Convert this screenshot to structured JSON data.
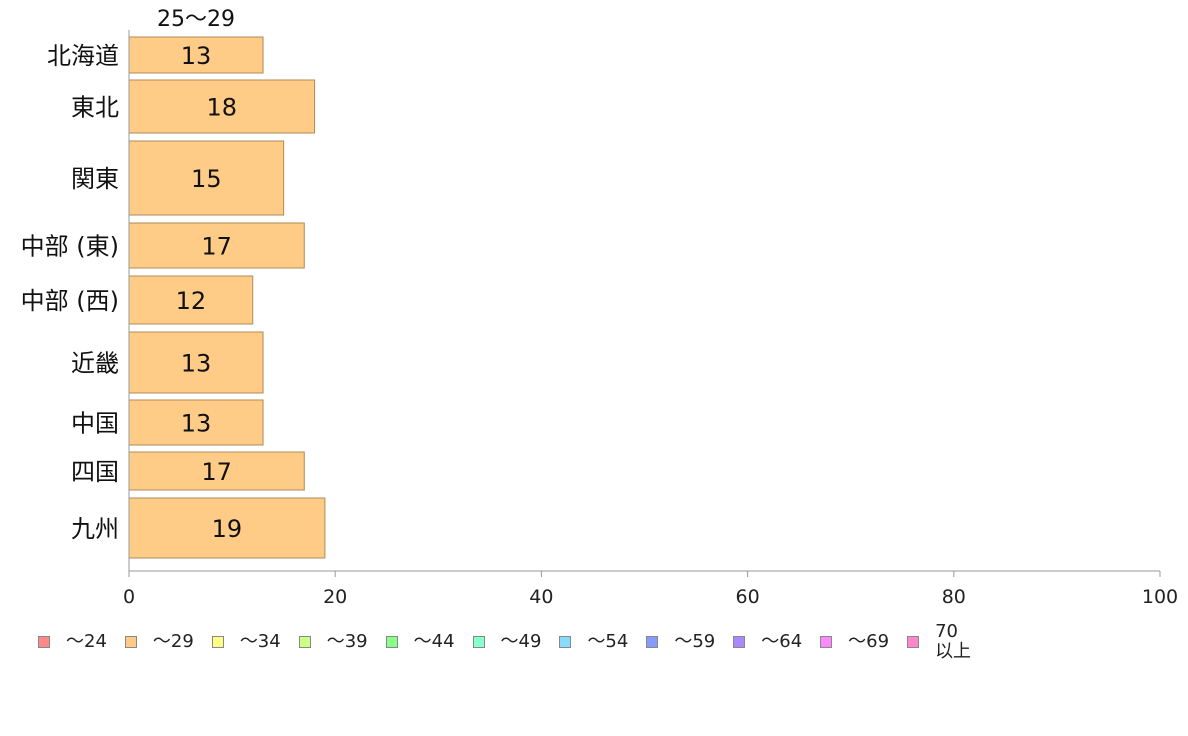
{
  "chart_data": {
    "type": "bar",
    "orientation": "horizontal",
    "series_label_top": "25〜29",
    "categories": [
      "北海道",
      "東北",
      "関東",
      "中部 (東)",
      "中部 (西)",
      "近畿",
      "中国",
      "四国",
      "九州"
    ],
    "values": [
      13,
      18,
      15,
      17,
      12,
      13,
      13,
      17,
      19
    ],
    "xlim": [
      0,
      100
    ],
    "xticks": [
      0,
      20,
      40,
      60,
      80,
      100
    ],
    "bar_color": "#ffcc88",
    "bar_border": "#b08a55",
    "legend_placement": "bottom",
    "legend": [
      {
        "label": "〜24",
        "color": "#ff8888"
      },
      {
        "label": "〜29",
        "color": "#ffcc88"
      },
      {
        "label": "〜34",
        "color": "#ffff88"
      },
      {
        "label": "〜39",
        "color": "#ccff88"
      },
      {
        "label": "〜44",
        "color": "#88ff88"
      },
      {
        "label": "〜49",
        "color": "#88ffcc"
      },
      {
        "label": "〜54",
        "color": "#88ddff"
      },
      {
        "label": "〜59",
        "color": "#8899ff"
      },
      {
        "label": "〜64",
        "color": "#aa88ff"
      },
      {
        "label": "〜69",
        "color": "#ff88ff"
      },
      {
        "label": "70\n以上",
        "color": "#ff88cc"
      }
    ]
  }
}
